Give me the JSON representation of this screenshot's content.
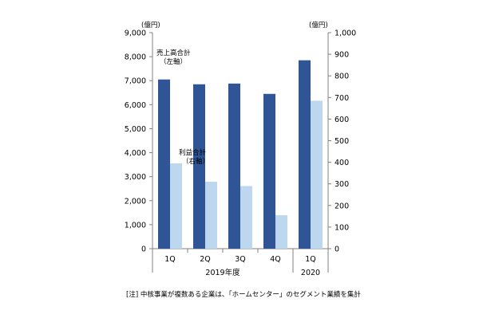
{
  "chart_data": {
    "type": "bar",
    "categories": [
      "1Q",
      "2Q",
      "3Q",
      "4Q",
      "1Q"
    ],
    "category_groups": [
      {
        "label": "2019年度",
        "categories": [
          0,
          1,
          2,
          3
        ]
      },
      {
        "label": "2020",
        "categories": [
          4
        ]
      }
    ],
    "y_left": {
      "unit": "(億円)",
      "ylim": [
        0,
        9000
      ],
      "ticks": [
        "0",
        "1,000",
        "2,000",
        "3,000",
        "4,000",
        "5,000",
        "6,000",
        "7,000",
        "8,000",
        "9,000"
      ]
    },
    "y_right": {
      "unit": "(億円)",
      "ylim": [
        0,
        1000
      ],
      "ticks": [
        "0",
        "100",
        "200",
        "300",
        "400",
        "500",
        "600",
        "700",
        "800",
        "900",
        "1,000"
      ]
    },
    "series": [
      {
        "name": "売上高合計（左軸）",
        "label_lines": [
          "売上高合計",
          "（左軸）"
        ],
        "axis": "left",
        "color": "#2f5597",
        "values": [
          7050,
          6850,
          6880,
          6450,
          7850
        ]
      },
      {
        "name": "利益合計（右軸）",
        "label_lines": [
          "利益合計",
          "（右軸）"
        ],
        "axis": "right",
        "color": "#bdd7ee",
        "values": [
          395,
          310,
          290,
          155,
          685
        ]
      }
    ],
    "grid": false,
    "legend": "inline-labels"
  },
  "footnote": "[注] 中核事業が複数ある企業は、「ホームセンター」のセグメント業績を集計"
}
